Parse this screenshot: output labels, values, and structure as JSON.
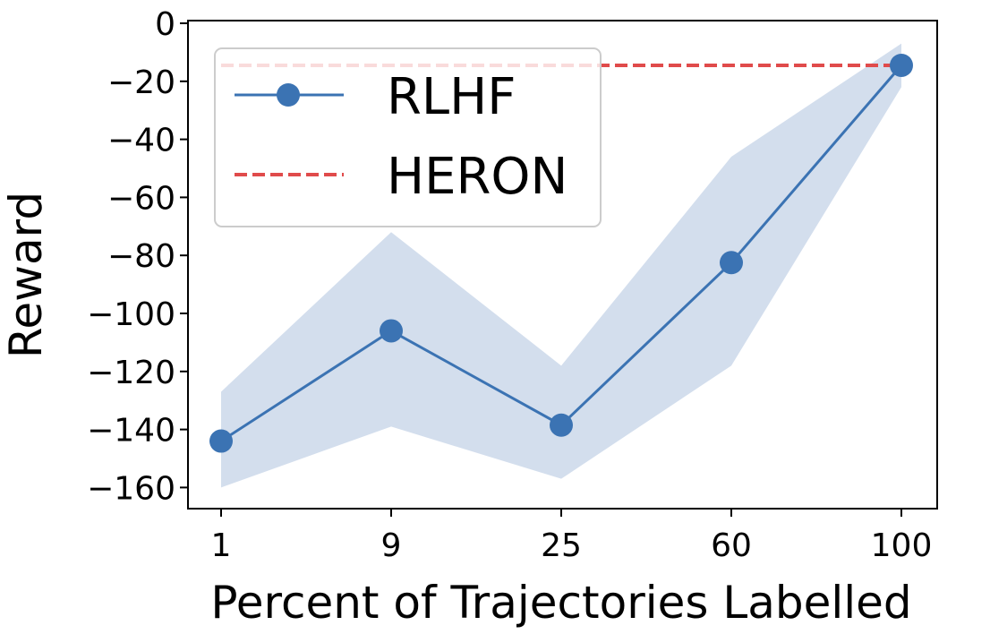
{
  "chart_data": {
    "type": "line",
    "title": "",
    "xlabel": "Percent of Trajectories Labelled",
    "ylabel": "Reward",
    "categories": [
      "1",
      "9",
      "25",
      "60",
      "100"
    ],
    "yticks": [
      "0",
      "−20",
      "−40",
      "−60",
      "−80",
      "−100",
      "−120",
      "−140",
      "−160"
    ],
    "ytick_values": [
      0,
      -20,
      -40,
      -60,
      -80,
      -100,
      -120,
      -140,
      -160
    ],
    "ylim": [
      -168,
      0
    ],
    "grid": false,
    "legend_position": "upper-left",
    "series": [
      {
        "name": "RLHF",
        "style": "solid line with circle markers",
        "color": "#3b73b3",
        "values": [
          -144,
          -106,
          -138.5,
          -82.5,
          -14.5
        ],
        "band_upper": [
          -127,
          -72,
          -118,
          -46,
          -7
        ],
        "band_lower": [
          -160,
          -139,
          -157,
          -118,
          -22
        ],
        "band_color": "#d3deed"
      },
      {
        "name": "HERON",
        "style": "dashed line",
        "color": "#e04b4b",
        "values": [
          -14.5,
          -14.5,
          -14.5,
          -14.5,
          -14.5
        ]
      }
    ]
  }
}
